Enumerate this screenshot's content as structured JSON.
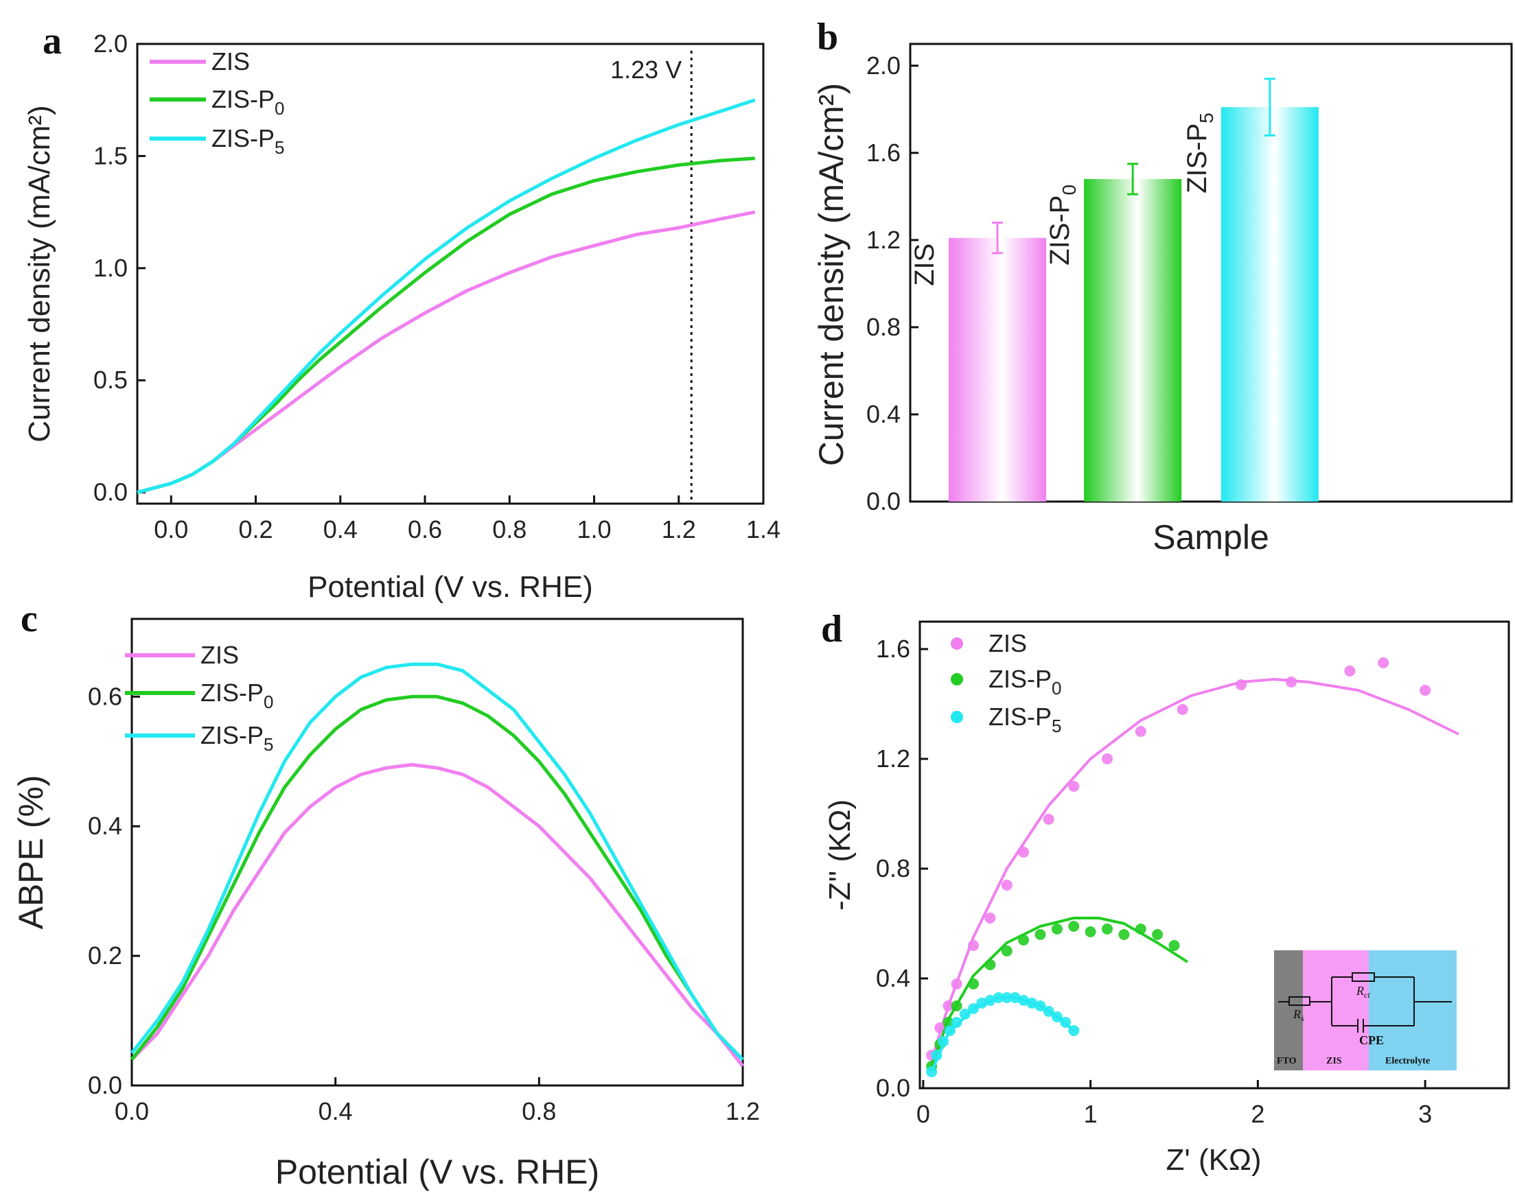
{
  "panel_letters": [
    "a",
    "b",
    "c",
    "d"
  ],
  "chart_data": [
    {
      "id": "a",
      "type": "line",
      "title": "",
      "xlabel": "Potential (V vs. RHE)",
      "ylabel": "Current density (mA/cm²)",
      "xlim": [
        -0.08,
        1.4
      ],
      "ylim": [
        -0.05,
        2.0
      ],
      "xticks": [
        0.0,
        0.2,
        0.4,
        0.6,
        0.8,
        1.0,
        1.2,
        1.4
      ],
      "yticks": [
        0.0,
        0.5,
        1.0,
        1.5,
        2.0
      ],
      "xtick_labels": [
        "0.0",
        "0.2",
        "0.4",
        "0.6",
        "0.8",
        "1.0",
        "1.2",
        "1.4"
      ],
      "ytick_labels": [
        "0.0",
        "0.5",
        "1.0",
        "1.5",
        "2.0"
      ],
      "annotation": {
        "text": "1.23 V",
        "x": 1.23
      },
      "legend_position": "top-left",
      "series": [
        {
          "name": "ZIS",
          "sub": "",
          "color": "#f080f0",
          "x": [
            -0.08,
            0.0,
            0.05,
            0.1,
            0.15,
            0.2,
            0.25,
            0.3,
            0.35,
            0.4,
            0.5,
            0.6,
            0.7,
            0.8,
            0.9,
            1.0,
            1.1,
            1.2,
            1.3,
            1.38
          ],
          "y": [
            0.0,
            0.04,
            0.08,
            0.14,
            0.21,
            0.28,
            0.35,
            0.42,
            0.49,
            0.56,
            0.69,
            0.8,
            0.9,
            0.98,
            1.05,
            1.1,
            1.15,
            1.18,
            1.22,
            1.25
          ]
        },
        {
          "name": "ZIS-P",
          "sub": "0",
          "color": "#22cc22",
          "x": [
            -0.08,
            0.0,
            0.05,
            0.1,
            0.15,
            0.2,
            0.25,
            0.3,
            0.35,
            0.4,
            0.5,
            0.6,
            0.7,
            0.8,
            0.9,
            1.0,
            1.1,
            1.2,
            1.3,
            1.38
          ],
          "y": [
            0.0,
            0.04,
            0.08,
            0.14,
            0.22,
            0.31,
            0.4,
            0.5,
            0.59,
            0.67,
            0.83,
            0.98,
            1.12,
            1.24,
            1.33,
            1.39,
            1.43,
            1.46,
            1.48,
            1.49
          ]
        },
        {
          "name": "ZIS-P",
          "sub": "5",
          "color": "#22e8f0",
          "x": [
            -0.08,
            0.0,
            0.05,
            0.1,
            0.15,
            0.2,
            0.25,
            0.3,
            0.35,
            0.4,
            0.5,
            0.6,
            0.7,
            0.8,
            0.9,
            1.0,
            1.1,
            1.2,
            1.3,
            1.38
          ],
          "y": [
            0.0,
            0.04,
            0.08,
            0.14,
            0.22,
            0.32,
            0.42,
            0.52,
            0.62,
            0.71,
            0.88,
            1.04,
            1.18,
            1.3,
            1.4,
            1.49,
            1.57,
            1.64,
            1.7,
            1.75
          ]
        }
      ]
    },
    {
      "id": "b",
      "type": "bar",
      "title": "",
      "xlabel": "Sample",
      "ylabel": "Current density (mA/cm²)",
      "ylim": [
        0.0,
        2.1
      ],
      "yticks": [
        0.0,
        0.4,
        0.8,
        1.2,
        1.6,
        2.0
      ],
      "ytick_labels": [
        "0.0",
        "0.4",
        "0.8",
        "1.2",
        "1.6",
        "2.0"
      ],
      "categories": [
        "ZIS",
        "ZIS-P0",
        "ZIS-P5"
      ],
      "bar_labels": [
        {
          "main": "ZIS",
          "sub": ""
        },
        {
          "main": "ZIS-P",
          "sub": "0"
        },
        {
          "main": "ZIS-P",
          "sub": "5"
        }
      ],
      "values": [
        1.21,
        1.48,
        1.81
      ],
      "errors": [
        0.07,
        0.07,
        0.13
      ],
      "colors": [
        "#f080f0",
        "#22cc22",
        "#22e8f0"
      ]
    },
    {
      "id": "c",
      "type": "line",
      "title": "",
      "xlabel": "Potential (V vs. RHE)",
      "ylabel": "ABPE (%)",
      "xlim": [
        0.0,
        1.2
      ],
      "ylim": [
        0.0,
        0.72
      ],
      "xticks": [
        0.0,
        0.4,
        0.8,
        1.2
      ],
      "yticks": [
        0.0,
        0.2,
        0.4,
        0.6
      ],
      "xtick_labels": [
        "0.0",
        "0.4",
        "0.8",
        "1.2"
      ],
      "ytick_labels": [
        "0.0",
        "0.2",
        "0.4",
        "0.6"
      ],
      "legend_position": "top-left",
      "series": [
        {
          "name": "ZIS",
          "sub": "",
          "color": "#f080f0",
          "x": [
            0.0,
            0.05,
            0.1,
            0.15,
            0.2,
            0.25,
            0.3,
            0.35,
            0.4,
            0.45,
            0.5,
            0.55,
            0.6,
            0.65,
            0.7,
            0.75,
            0.8,
            0.85,
            0.9,
            0.95,
            1.0,
            1.05,
            1.1,
            1.15,
            1.2
          ],
          "y": [
            0.04,
            0.08,
            0.14,
            0.2,
            0.27,
            0.33,
            0.39,
            0.43,
            0.46,
            0.48,
            0.49,
            0.495,
            0.49,
            0.48,
            0.46,
            0.43,
            0.4,
            0.36,
            0.32,
            0.27,
            0.22,
            0.17,
            0.12,
            0.08,
            0.03
          ]
        },
        {
          "name": "ZIS-P",
          "sub": "0",
          "color": "#22cc22",
          "x": [
            0.0,
            0.05,
            0.1,
            0.15,
            0.2,
            0.25,
            0.3,
            0.35,
            0.4,
            0.45,
            0.5,
            0.55,
            0.6,
            0.65,
            0.7,
            0.75,
            0.8,
            0.85,
            0.9,
            0.95,
            1.0,
            1.05,
            1.1,
            1.15,
            1.2
          ],
          "y": [
            0.04,
            0.09,
            0.15,
            0.23,
            0.31,
            0.39,
            0.46,
            0.51,
            0.55,
            0.58,
            0.595,
            0.6,
            0.6,
            0.59,
            0.57,
            0.54,
            0.5,
            0.45,
            0.39,
            0.33,
            0.27,
            0.2,
            0.14,
            0.08,
            0.04
          ]
        },
        {
          "name": "ZIS-P",
          "sub": "5",
          "color": "#22e8f0",
          "x": [
            0.0,
            0.05,
            0.1,
            0.15,
            0.2,
            0.25,
            0.3,
            0.35,
            0.4,
            0.45,
            0.5,
            0.55,
            0.6,
            0.65,
            0.7,
            0.75,
            0.8,
            0.85,
            0.9,
            0.95,
            1.0,
            1.05,
            1.1,
            1.15,
            1.2
          ],
          "y": [
            0.05,
            0.1,
            0.16,
            0.24,
            0.33,
            0.42,
            0.5,
            0.56,
            0.6,
            0.63,
            0.645,
            0.65,
            0.65,
            0.64,
            0.61,
            0.58,
            0.53,
            0.48,
            0.42,
            0.35,
            0.28,
            0.21,
            0.14,
            0.08,
            0.04
          ]
        }
      ]
    },
    {
      "id": "d",
      "type": "scatter",
      "title": "",
      "xlabel": "Z' (KΩ)",
      "ylabel": "-Z'' (KΩ)",
      "xlim": [
        -0.02,
        3.5
      ],
      "ylim": [
        0.0,
        1.7
      ],
      "xticks": [
        0,
        1,
        2,
        3
      ],
      "yticks": [
        0.0,
        0.4,
        0.8,
        1.2,
        1.6
      ],
      "xtick_labels": [
        "0",
        "1",
        "2",
        "3"
      ],
      "ytick_labels": [
        "0.0",
        "0.4",
        "0.8",
        "1.2",
        "1.6"
      ],
      "legend_position": "top-left",
      "series": [
        {
          "name": "ZIS",
          "sub": "",
          "color": "#f080f0",
          "points_x": [
            0.05,
            0.1,
            0.15,
            0.2,
            0.3,
            0.4,
            0.5,
            0.6,
            0.75,
            0.9,
            1.1,
            1.3,
            1.55,
            1.9,
            2.2,
            2.55,
            2.75,
            3.0
          ],
          "points_y": [
            0.12,
            0.22,
            0.3,
            0.38,
            0.52,
            0.62,
            0.74,
            0.86,
            0.98,
            1.1,
            1.2,
            1.3,
            1.38,
            1.47,
            1.48,
            1.52,
            1.55,
            1.45
          ],
          "fit_x": [
            0.05,
            0.15,
            0.3,
            0.5,
            0.75,
            1.0,
            1.3,
            1.6,
            1.9,
            2.1,
            2.3,
            2.6,
            2.9,
            3.2
          ],
          "fit_y": [
            0.1,
            0.3,
            0.55,
            0.8,
            1.03,
            1.2,
            1.34,
            1.43,
            1.48,
            1.49,
            1.48,
            1.45,
            1.38,
            1.29
          ]
        },
        {
          "name": "ZIS-P",
          "sub": "0",
          "color": "#22cc22",
          "points_x": [
            0.05,
            0.1,
            0.15,
            0.2,
            0.3,
            0.4,
            0.5,
            0.6,
            0.7,
            0.8,
            0.9,
            1.0,
            1.1,
            1.2,
            1.3,
            1.4,
            1.5
          ],
          "points_y": [
            0.08,
            0.16,
            0.24,
            0.3,
            0.38,
            0.45,
            0.5,
            0.54,
            0.56,
            0.58,
            0.59,
            0.57,
            0.58,
            0.56,
            0.58,
            0.56,
            0.52
          ],
          "fit_x": [
            0.05,
            0.15,
            0.3,
            0.5,
            0.7,
            0.9,
            1.05,
            1.2,
            1.4,
            1.58
          ],
          "fit_y": [
            0.08,
            0.25,
            0.41,
            0.53,
            0.59,
            0.62,
            0.62,
            0.6,
            0.53,
            0.46
          ]
        },
        {
          "name": "ZIS-P",
          "sub": "5",
          "color": "#22e8f0",
          "points_x": [
            0.05,
            0.08,
            0.12,
            0.16,
            0.2,
            0.25,
            0.3,
            0.35,
            0.4,
            0.45,
            0.5,
            0.55,
            0.6,
            0.65,
            0.7,
            0.75,
            0.8,
            0.85,
            0.9
          ],
          "points_y": [
            0.06,
            0.12,
            0.17,
            0.21,
            0.24,
            0.27,
            0.29,
            0.31,
            0.32,
            0.33,
            0.33,
            0.33,
            0.32,
            0.31,
            0.3,
            0.28,
            0.26,
            0.24,
            0.21
          ],
          "fit_x": [
            0.05,
            0.15,
            0.3,
            0.45,
            0.55,
            0.7,
            0.8,
            0.9
          ],
          "fit_y": [
            0.06,
            0.2,
            0.29,
            0.33,
            0.33,
            0.3,
            0.26,
            0.21
          ]
        }
      ],
      "inset": {
        "labels": [
          "FTO",
          "ZIS",
          "Electrolyte"
        ],
        "components": {
          "rs": "R",
          "rs_sub": "s",
          "rct": "R",
          "rct_sub": "ct",
          "cpe": "CPE"
        },
        "colors": {
          "fto": "#808080",
          "zis": "#f79cf4",
          "electrolyte": "#7fd3f0"
        }
      }
    }
  ]
}
